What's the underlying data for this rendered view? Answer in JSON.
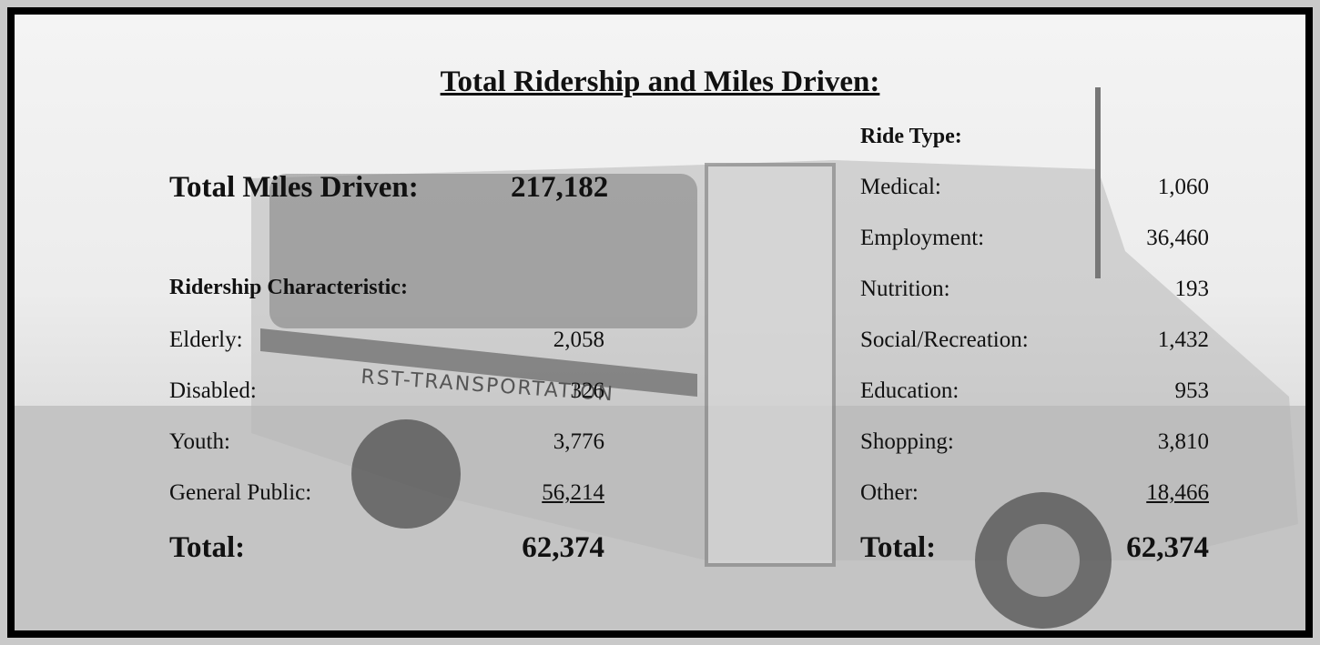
{
  "title": "Total Ridership and Miles Driven:",
  "miles": {
    "label": "Total Miles Driven:",
    "value": "217,182"
  },
  "ridership": {
    "heading": "Ridership Characteristic:",
    "rows": [
      [
        "Elderly:",
        "2,058"
      ],
      [
        "Disabled:",
        "326"
      ],
      [
        "Youth:",
        "3,776"
      ],
      [
        "General Public:",
        "56,214"
      ]
    ],
    "total": [
      "Total:",
      "62,374"
    ]
  },
  "ride_type": {
    "heading": "Ride Type:",
    "rows": [
      [
        "Medical:",
        "1,060"
      ],
      [
        "Employment:",
        "36,460"
      ],
      [
        "Nutrition:",
        "193"
      ],
      [
        "Social/Recreation:",
        "1,432"
      ],
      [
        "Education:",
        "953"
      ],
      [
        "Shopping:",
        "3,810"
      ],
      [
        "Other:",
        "18,466"
      ]
    ],
    "total": [
      "Total:",
      "62,374"
    ]
  },
  "bus_lettering": "RST-TRANSPORTATION"
}
